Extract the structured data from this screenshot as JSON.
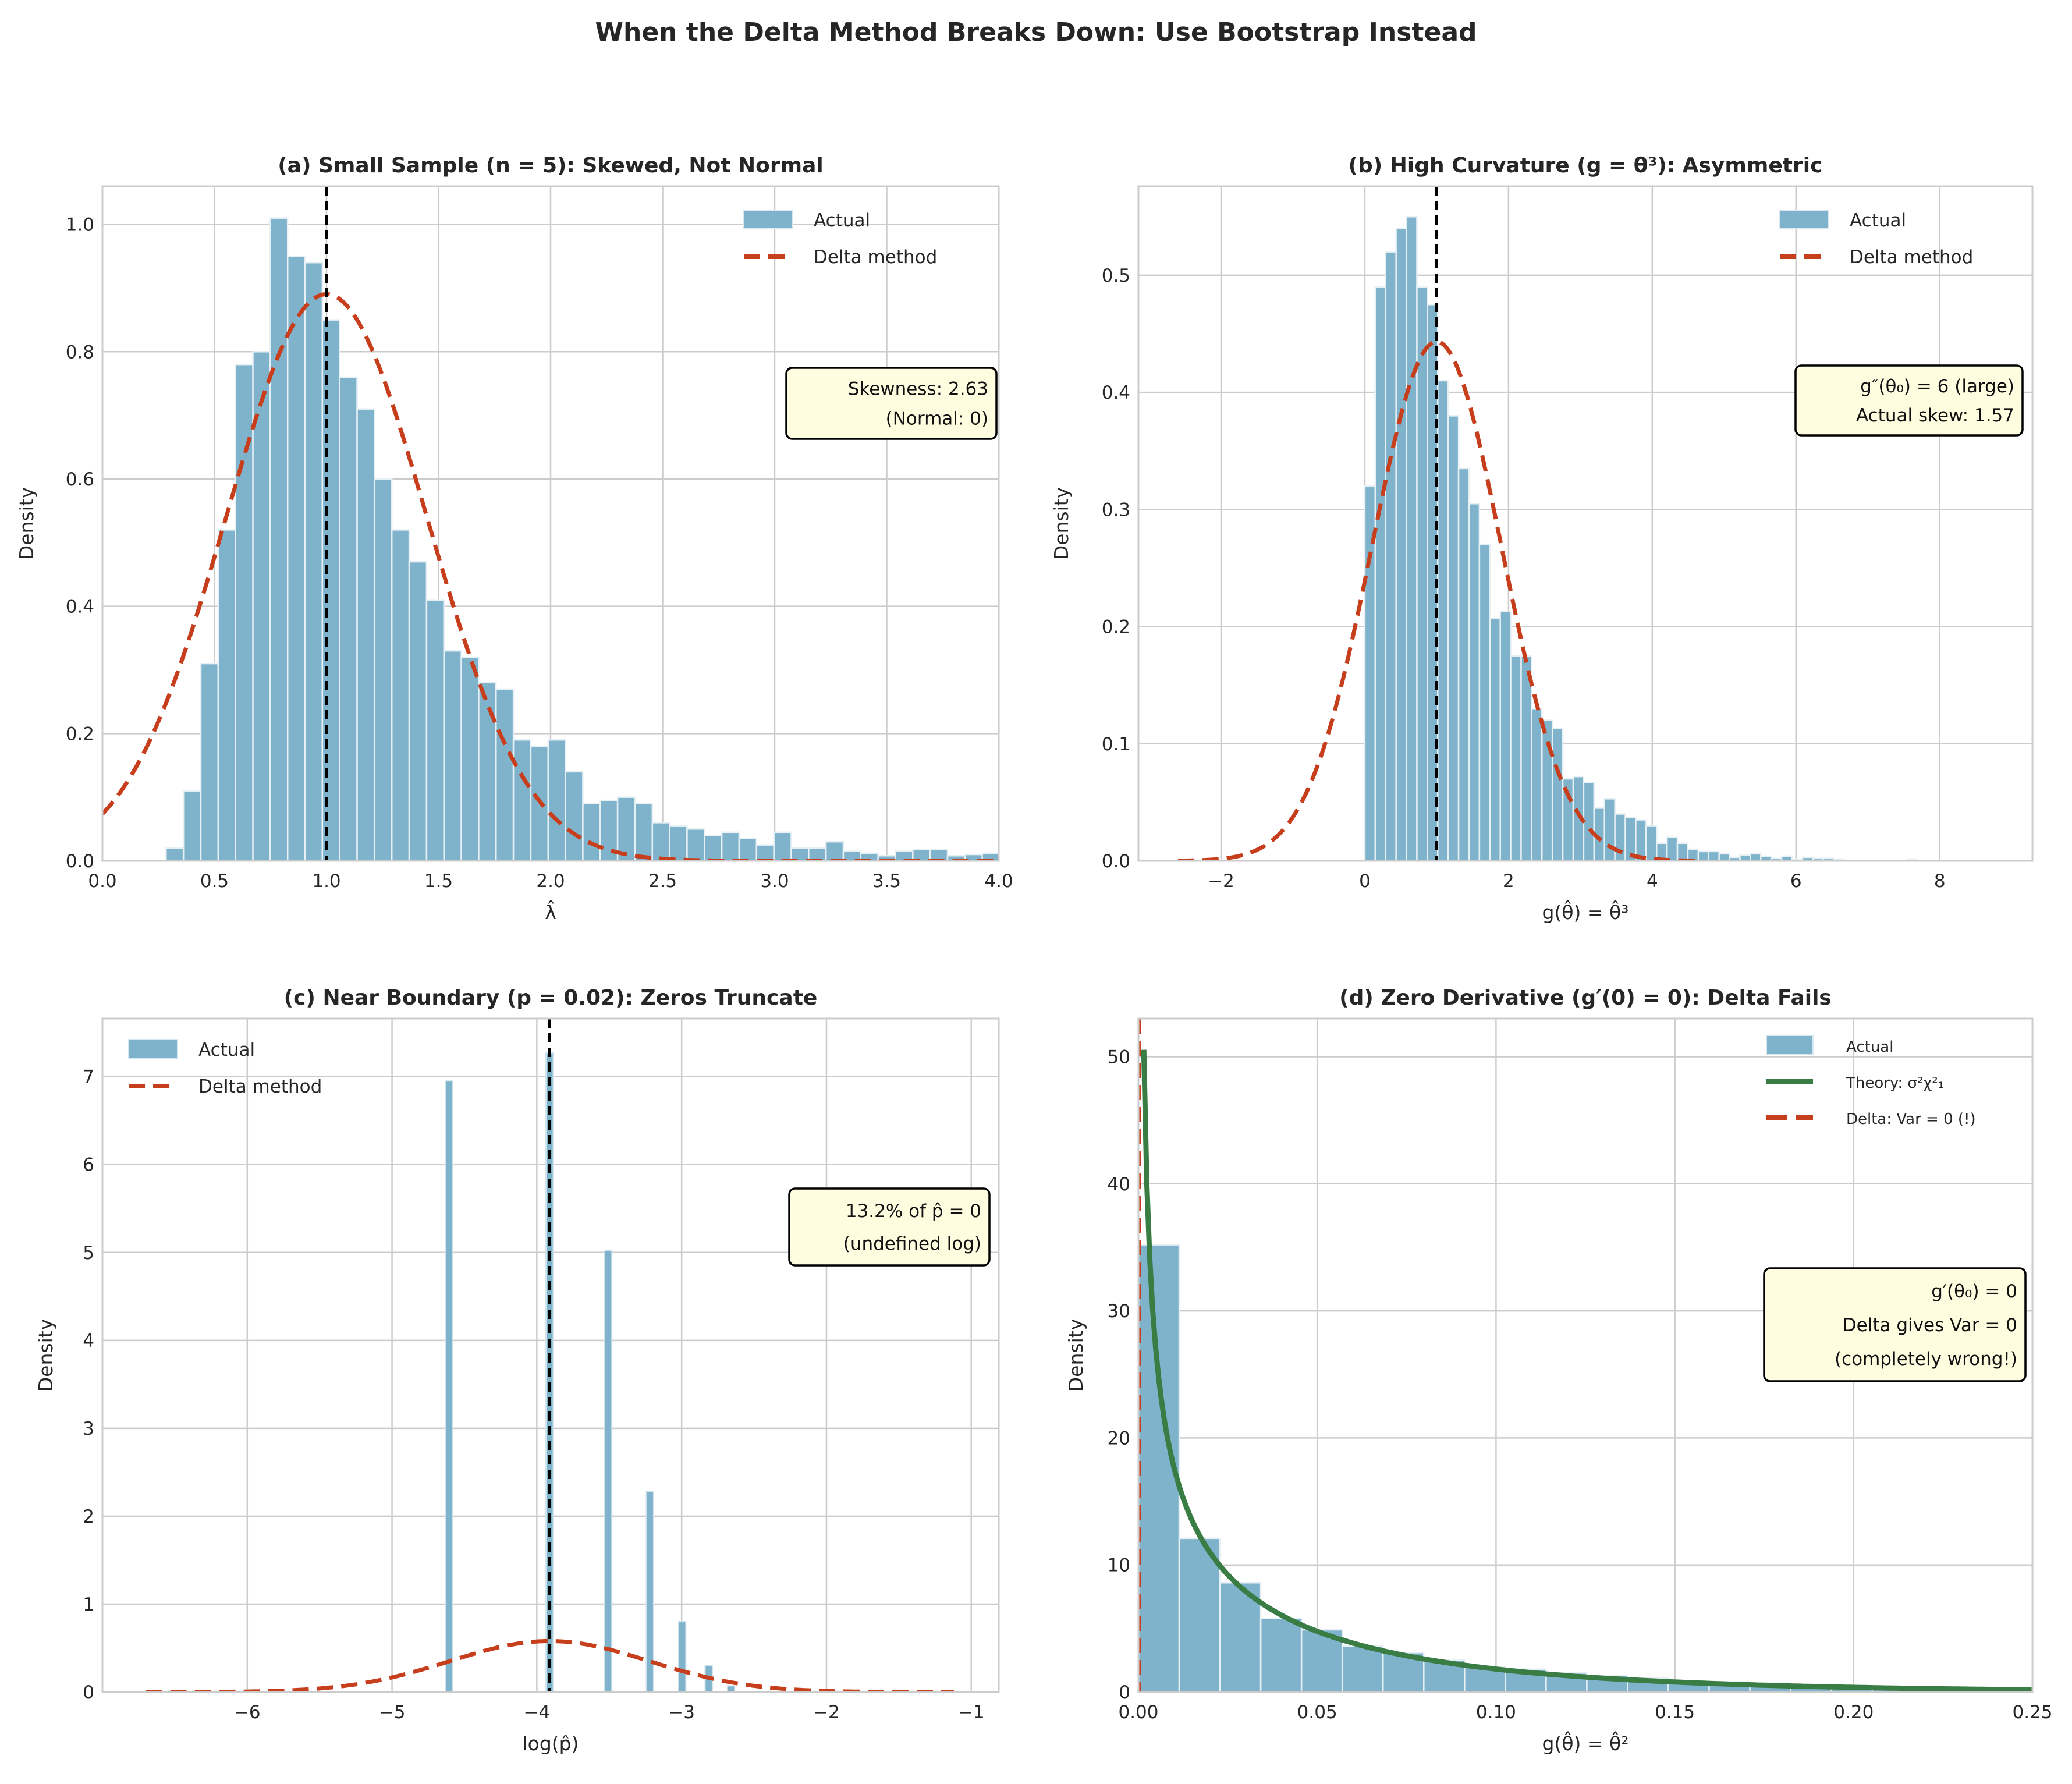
{
  "suptitle": "When the Delta Method Breaks Down: Use Bootstrap Instead",
  "colors": {
    "hist": "#7fb3cc",
    "delta": "#c73e1d",
    "theory": "#3a7d44",
    "annotation_fill": "#fffde0"
  },
  "chart_data": [
    {
      "type": "bar",
      "title": "(a) Small Sample (n = 5): Skewed, Not Normal",
      "xlabel": "λ̂",
      "ylabel": "Density",
      "xlim": [
        0,
        4.0
      ],
      "ylim": [
        0,
        1.06
      ],
      "grid": true,
      "legend_placement": "top-right",
      "xticks": [
        0,
        0.5,
        1.0,
        1.5,
        2.0,
        2.5,
        3.0,
        3.5,
        4.0
      ],
      "xtick_labels": [
        "0.0",
        "0.5",
        "1.0",
        "1.5",
        "2.0",
        "2.5",
        "3.0",
        "3.5",
        "4.0"
      ],
      "yticks": [
        0,
        0.2,
        0.4,
        0.6,
        0.8,
        1.0
      ],
      "ytick_labels": [
        "0.0",
        "0.2",
        "0.4",
        "0.6",
        "0.8",
        "1.0"
      ],
      "hist": {
        "start": 0.284,
        "bin_width": 0.0775,
        "values": [
          0.02,
          0.11,
          0.31,
          0.52,
          0.78,
          0.8,
          1.01,
          0.95,
          0.94,
          0.85,
          0.76,
          0.71,
          0.6,
          0.52,
          0.47,
          0.41,
          0.33,
          0.32,
          0.28,
          0.27,
          0.19,
          0.18,
          0.19,
          0.14,
          0.09,
          0.095,
          0.1,
          0.09,
          0.06,
          0.055,
          0.05,
          0.04,
          0.045,
          0.035,
          0.025,
          0.045,
          0.02,
          0.02,
          0.03,
          0.015,
          0.012,
          0.008,
          0.015,
          0.018,
          0.018,
          0.008,
          0.01,
          0.012
        ]
      },
      "delta_curve": {
        "kind": "normal",
        "mean": 1.0,
        "sd": 0.448,
        "x_range": [
          0,
          4.0
        ]
      },
      "vline": 1.0,
      "legend": [
        "Actual",
        "Delta method"
      ],
      "annotation": [
        "Skewness: 2.63",
        "(Normal: 0)"
      ]
    },
    {
      "type": "bar",
      "title": "(b) High Curvature (g = θ³): Asymmetric",
      "xlabel": "g(θ̂) = θ̂³",
      "ylabel": "Density",
      "xlim": [
        -3.15,
        9.29
      ],
      "ylim": [
        0,
        0.576
      ],
      "grid": true,
      "legend_placement": "top-right",
      "xticks": [
        -2,
        0,
        2,
        4,
        6,
        8
      ],
      "xtick_labels": [
        "−2",
        "0",
        "2",
        "4",
        "6",
        "8"
      ],
      "yticks": [
        0,
        0.1,
        0.2,
        0.3,
        0.4,
        0.5
      ],
      "ytick_labels": [
        "0.0",
        "0.1",
        "0.2",
        "0.3",
        "0.4",
        "0.5"
      ],
      "hist": {
        "start": 0.0,
        "bin_width": 0.145,
        "values": [
          0.32,
          0.49,
          0.52,
          0.54,
          0.55,
          0.49,
          0.475,
          0.41,
          0.38,
          0.335,
          0.305,
          0.27,
          0.207,
          0.213,
          0.175,
          0.175,
          0.13,
          0.12,
          0.113,
          0.07,
          0.072,
          0.067,
          0.045,
          0.053,
          0.04,
          0.037,
          0.035,
          0.03,
          0.015,
          0.02,
          0.015,
          0.01,
          0.008,
          0.008,
          0.006,
          0.003,
          0.005,
          0.006,
          0.004,
          0.002,
          0.004,
          0.001,
          0.003,
          0.002,
          0.002,
          0.0015,
          0,
          0,
          0,
          0,
          0,
          0,
          0.0015
        ]
      },
      "delta_curve": {
        "kind": "normal",
        "mean": 1.0,
        "sd": 0.9,
        "x_range": [
          -2.6,
          4.6
        ]
      },
      "vline": 1.0,
      "legend": [
        "Actual",
        "Delta method"
      ],
      "annotation": [
        "g″(θ₀) = 6 (large)",
        "Actual skew: 1.57"
      ]
    },
    {
      "type": "bar",
      "title": "(c) Near Boundary (p = 0.02): Zeros Truncate",
      "xlabel": "log(p̂)",
      "ylabel": "Density",
      "xlim": [
        -7.0,
        -0.81
      ],
      "ylim": [
        0,
        7.66
      ],
      "grid": true,
      "legend_placement": "top-left",
      "xticks": [
        -6,
        -5,
        -4,
        -3,
        -2,
        -1
      ],
      "xtick_labels": [
        "−6",
        "−5",
        "−4",
        "−3",
        "−2",
        "−1"
      ],
      "yticks": [
        0,
        1,
        2,
        3,
        4,
        5,
        6,
        7
      ],
      "ytick_labels": [
        "0",
        "1",
        "2",
        "3",
        "4",
        "5",
        "6",
        "7"
      ],
      "bars": {
        "bin_width": 0.05,
        "x": [
          -4.605,
          -3.912,
          -3.507,
          -3.219,
          -2.996,
          -2.813,
          -2.659
        ],
        "values": [
          6.95,
          7.27,
          5.02,
          2.28,
          0.8,
          0.3,
          0.07
        ]
      },
      "delta_curve": {
        "kind": "normal",
        "mean": -3.912,
        "sd": 0.688,
        "x_range": [
          -6.7,
          -1.12
        ]
      },
      "vline": -3.912,
      "legend": [
        "Actual",
        "Delta method"
      ],
      "annotation": [
        "13.2% of p̂ = 0",
        "(undefined log)"
      ]
    },
    {
      "type": "bar",
      "title": "(d) Zero Derivative (g′(0) = 0): Delta Fails",
      "xlabel": "g(θ̂) = θ̂²",
      "ylabel": "Density",
      "xlim": [
        0,
        0.25
      ],
      "ylim": [
        0,
        53
      ],
      "grid": true,
      "legend_placement": "top-right",
      "xticks": [
        0,
        0.05,
        0.1,
        0.15,
        0.2,
        0.25
      ],
      "xtick_labels": [
        "0.00",
        "0.05",
        "0.10",
        "0.15",
        "0.20",
        "0.25"
      ],
      "yticks": [
        0,
        10,
        20,
        30,
        40,
        50
      ],
      "ytick_labels": [
        "0",
        "10",
        "20",
        "30",
        "40",
        "50"
      ],
      "hist": {
        "start": 0.0,
        "bin_width": 0.0114,
        "values": [
          35.2,
          12.1,
          8.6,
          5.8,
          4.9,
          3.6,
          3.1,
          2.5,
          2.0,
          1.8,
          1.5,
          1.3,
          1.1,
          0.9,
          0.8,
          0.7,
          0.6,
          0.5,
          0.4,
          0.35,
          0.3,
          0.25
        ]
      },
      "theory_curve": {
        "kind": "scaled_chi2_df1",
        "sigma2": 0.04,
        "x_range": [
          0.0015,
          0.25
        ]
      },
      "vline": 0.0,
      "legend": [
        "Actual",
        "Theory: σ²χ²₁",
        "Delta: Var = 0 (!)"
      ],
      "annotation": [
        "g′(θ₀) = 0",
        "Delta gives Var = 0",
        "(completely wrong!)"
      ]
    }
  ]
}
